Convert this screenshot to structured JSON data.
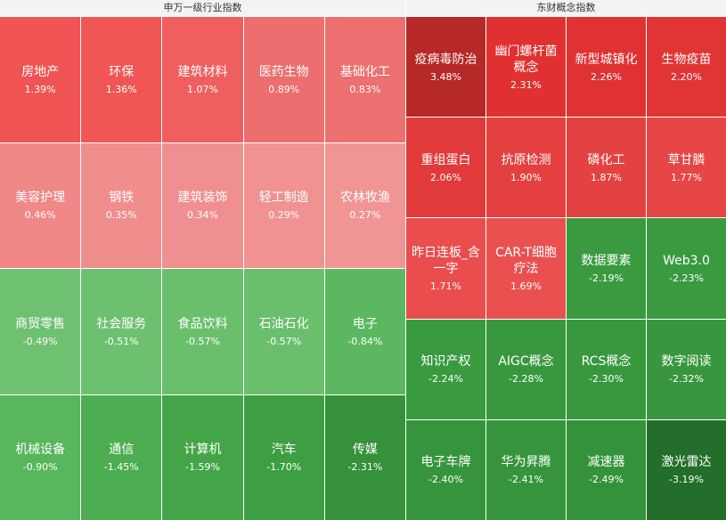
{
  "panels": [
    {
      "title": "申万一级行业指数",
      "columns": 5,
      "cells": [
        {
          "name": "房地产",
          "change": "1.39%",
          "color": "#f05454"
        },
        {
          "name": "环保",
          "change": "1.36%",
          "color": "#f05656"
        },
        {
          "name": "建筑材料",
          "change": "1.07%",
          "color": "#ef5f5f"
        },
        {
          "name": "医药生物",
          "change": "0.89%",
          "color": "#ec6e6e"
        },
        {
          "name": "基础化工",
          "change": "0.83%",
          "color": "#ec7070"
        },
        {
          "name": "美容护理",
          "change": "0.46%",
          "color": "#f08888"
        },
        {
          "name": "钢铁",
          "change": "0.35%",
          "color": "#f08e8e"
        },
        {
          "name": "建筑装饰",
          "change": "0.34%",
          "color": "#f08f8f"
        },
        {
          "name": "轻工制造",
          "change": "0.29%",
          "color": "#f09292"
        },
        {
          "name": "农林牧渔",
          "change": "0.27%",
          "color": "#f09494"
        },
        {
          "name": "商贸零售",
          "change": "-0.49%",
          "color": "#6fc172"
        },
        {
          "name": "社会服务",
          "change": "-0.51%",
          "color": "#6dc070"
        },
        {
          "name": "食品饮料",
          "change": "-0.57%",
          "color": "#6abf6d"
        },
        {
          "name": "石油石化",
          "change": "-0.57%",
          "color": "#6abf6d"
        },
        {
          "name": "电子",
          "change": "-0.84%",
          "color": "#5cb860"
        },
        {
          "name": "机械设备",
          "change": "-0.90%",
          "color": "#58b65c"
        },
        {
          "name": "通信",
          "change": "-1.45%",
          "color": "#4cae50"
        },
        {
          "name": "计算机",
          "change": "-1.59%",
          "color": "#44a548"
        },
        {
          "name": "汽车",
          "change": "-1.70%",
          "color": "#3e9e43"
        },
        {
          "name": "传媒",
          "change": "-2.31%",
          "color": "#35913a"
        }
      ]
    },
    {
      "title": "东财概念指数",
      "columns": 4,
      "cells": [
        {
          "name": "疫病毒防治",
          "change": "3.48%",
          "color": "#b72828"
        },
        {
          "name": "幽门螺杆菌概念",
          "change": "2.31%",
          "color": "#e03030"
        },
        {
          "name": "新型城镇化",
          "change": "2.26%",
          "color": "#e03232"
        },
        {
          "name": "生物疫苗",
          "change": "2.20%",
          "color": "#e13434"
        },
        {
          "name": "重组蛋白",
          "change": "2.06%",
          "color": "#e23a3a"
        },
        {
          "name": "抗原检测",
          "change": "1.90%",
          "color": "#e44040"
        },
        {
          "name": "磷化工",
          "change": "1.87%",
          "color": "#e44242"
        },
        {
          "name": "草甘膦",
          "change": "1.77%",
          "color": "#e64646"
        },
        {
          "name": "昨日连板_含一字",
          "change": "1.71%",
          "color": "#e94d4d"
        },
        {
          "name": "CAR-T细胞疗法",
          "change": "1.69%",
          "color": "#ea5050"
        },
        {
          "name": "数据要素",
          "change": "-2.19%",
          "color": "#3a9a40"
        },
        {
          "name": "Web3.0",
          "change": "-2.23%",
          "color": "#3a9a40"
        },
        {
          "name": "知识产权",
          "change": "-2.24%",
          "color": "#399a3f"
        },
        {
          "name": "AIGC概念",
          "change": "-2.28%",
          "color": "#38983e"
        },
        {
          "name": "RCS概念",
          "change": "-2.30%",
          "color": "#38983e"
        },
        {
          "name": "数字阅读",
          "change": "-2.32%",
          "color": "#38973e"
        },
        {
          "name": "电子车牌",
          "change": "-2.40%",
          "color": "#36953c"
        },
        {
          "name": "华为昇腾",
          "change": "-2.41%",
          "color": "#36953c"
        },
        {
          "name": "减速器",
          "change": "-2.49%",
          "color": "#34923a"
        },
        {
          "name": "激光雷达",
          "change": "-3.19%",
          "color": "#236e2a"
        }
      ]
    }
  ]
}
